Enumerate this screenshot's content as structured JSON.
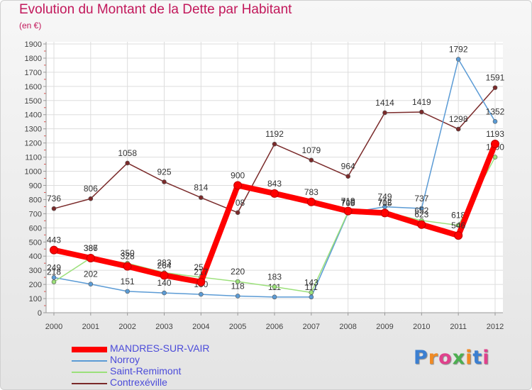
{
  "title": "Evolution du Montant de la Dette par Habitant",
  "unit_label": "(en €)",
  "logo": {
    "text": "Proxiti",
    "letter_colors": [
      "#3b7fd1",
      "#f08a24",
      "#e0418c",
      "#4caf50",
      "#f08a24",
      "#3b7fd1",
      "#e0418c"
    ]
  },
  "chart_data": {
    "type": "line",
    "title": "Evolution du Montant de la Dette par Habitant",
    "ylabel": "(en €)",
    "xlabel": "",
    "x": [
      "2000",
      "2001",
      "2002",
      "2003",
      "2004",
      "2005",
      "2006",
      "2007",
      "2008",
      "2009",
      "2010",
      "2011",
      "2012"
    ],
    "ylim": [
      0,
      1900
    ],
    "yticks": [
      0,
      100,
      200,
      300,
      400,
      500,
      600,
      700,
      800,
      900,
      1000,
      1100,
      1200,
      1300,
      1400,
      1500,
      1600,
      1700,
      1800,
      1900
    ],
    "grid": true,
    "legend_position": "bottom-left",
    "series": [
      {
        "name": "Contrexéville",
        "color": "#7a2a2a",
        "width": 1.5,
        "values": [
          736,
          806,
          1058,
          925,
          814,
          708,
          1192,
          1079,
          964,
          1414,
          1419,
          1298,
          1591
        ]
      },
      {
        "name": "Norroy",
        "color": "#5b9bd5",
        "width": 1.5,
        "values": [
          249,
          202,
          151,
          140,
          130,
          118,
          111,
          111,
          705,
          749,
          737,
          1792,
          1352
        ]
      },
      {
        "name": "Saint-Remimont",
        "color": "#9be07a",
        "width": 1.5,
        "values": [
          218,
          387,
          350,
          283,
          251,
          220,
          183,
          143,
          710,
          712,
          652,
          618,
          1100
        ]
      },
      {
        "name": "MANDRES-SUR-VAIR",
        "color": "#ff0000",
        "width": 8,
        "values": [
          443,
          386,
          328,
          264,
          217,
          900,
          843,
          783,
          719,
          705,
          623,
          546,
          1193
        ]
      }
    ]
  },
  "legend": [
    {
      "name": "MANDRES-SUR-VAIR",
      "color": "#ff0000",
      "thickness": 8
    },
    {
      "name": "Norroy",
      "color": "#5b9bd5",
      "thickness": 2
    },
    {
      "name": "Saint-Remimont",
      "color": "#9be07a",
      "thickness": 2
    },
    {
      "name": "Contrexéville",
      "color": "#7a2a2a",
      "thickness": 2
    }
  ]
}
